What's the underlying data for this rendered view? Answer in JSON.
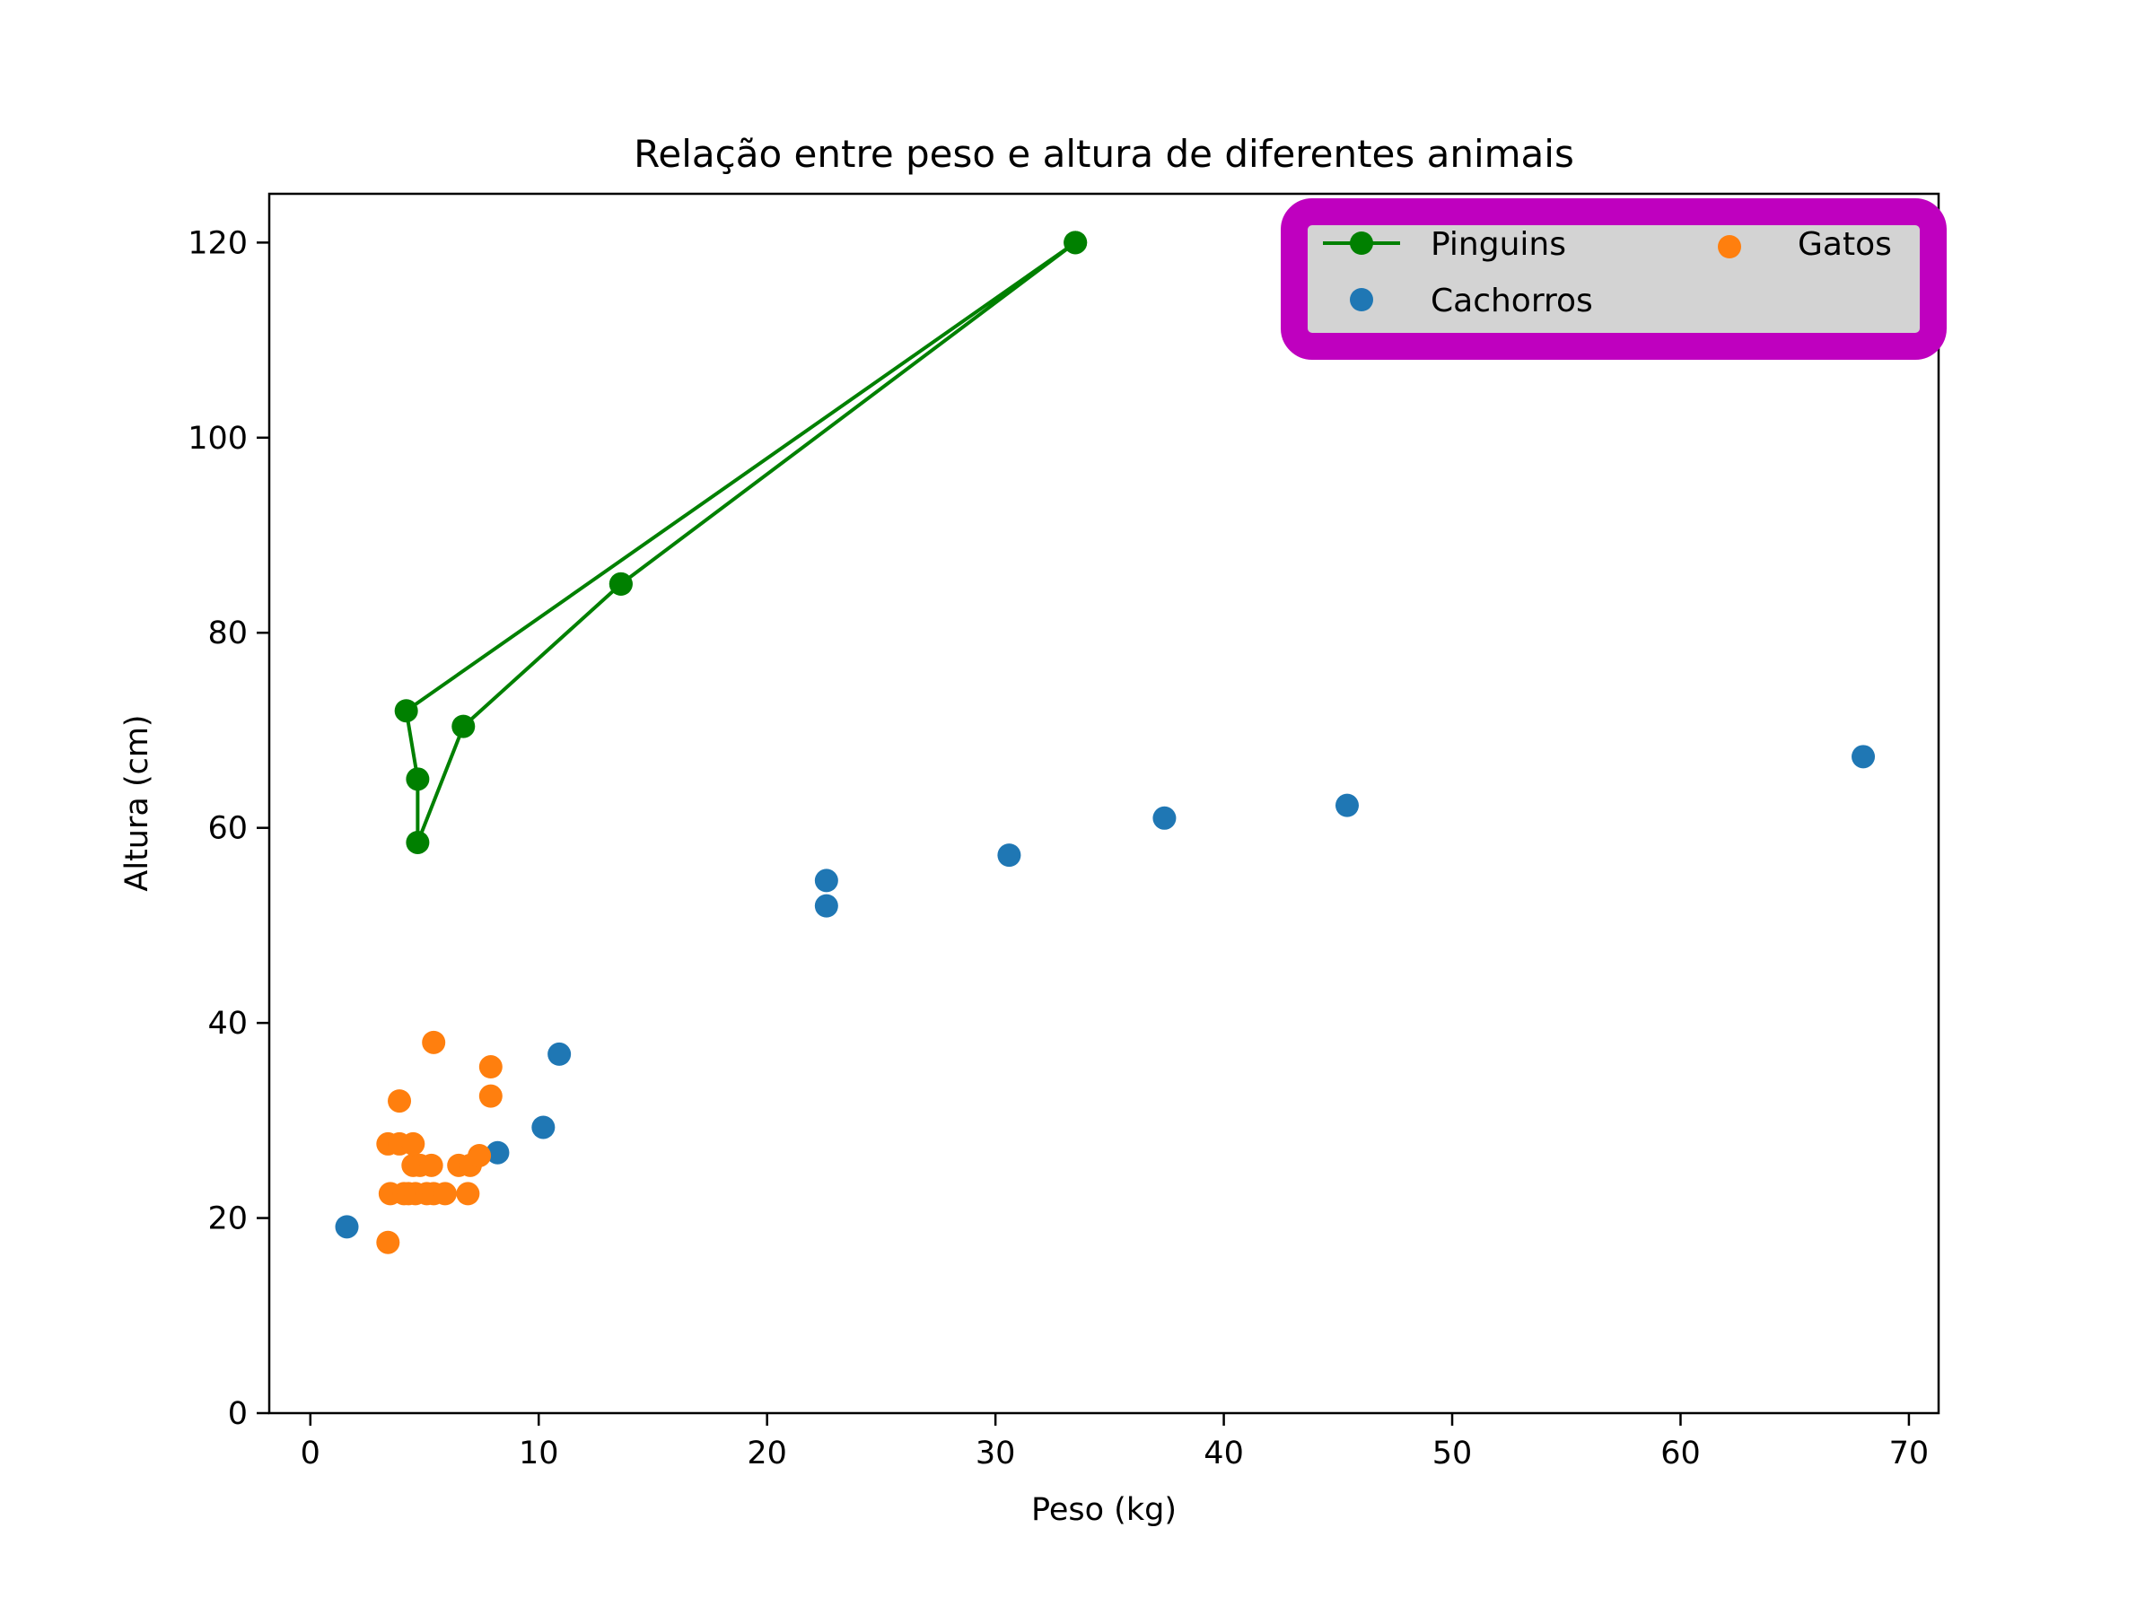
{
  "chart_data": {
    "type": "scatter",
    "title": "Relação entre peso e altura de diferentes animais",
    "xlabel": "Peso (kg)",
    "ylabel": "Altura (cm)",
    "xlim": [
      -1.8,
      71.3
    ],
    "ylim": [
      0,
      125
    ],
    "xticks": [
      0,
      10,
      20,
      30,
      40,
      50,
      60,
      70
    ],
    "yticks": [
      0,
      20,
      40,
      60,
      80,
      100,
      120
    ],
    "xtick_labels": [
      "0",
      "10",
      "20",
      "30",
      "40",
      "50",
      "60",
      "70"
    ],
    "ytick_labels": [
      "0",
      "20",
      "40",
      "60",
      "80",
      "100",
      "120"
    ],
    "grid": false,
    "legend_position": "top-right",
    "legend": {
      "columns": 2,
      "face_color": "#d3d3d3",
      "edge_color": "#bf00bf",
      "shadow": true
    },
    "series": [
      {
        "name": "Pinguins",
        "kind": "line",
        "color": "#008000",
        "marker": "circle",
        "x": [
          33.5,
          4.2,
          4.7,
          4.7,
          6.7,
          13.6,
          33.5,
          13.6
        ],
        "y": [
          120,
          72,
          65,
          58.5,
          70.4,
          85,
          120,
          85
        ]
      },
      {
        "name": "Cachorros",
        "kind": "scatter",
        "color": "#1f77b4",
        "marker": "circle",
        "x": [
          1.6,
          8.2,
          10.2,
          10.9,
          22.6,
          22.6,
          30.6,
          37.4,
          45.4,
          68.0
        ],
        "y": [
          19.1,
          26.7,
          29.3,
          36.8,
          52.0,
          54.6,
          57.2,
          61.0,
          62.3,
          67.3
        ]
      },
      {
        "name": "Gatos",
        "kind": "scatter",
        "color": "#ff7f0e",
        "marker": "circle",
        "x": [
          3.4,
          3.4,
          3.5,
          3.9,
          3.9,
          4.1,
          4.3,
          4.5,
          4.5,
          4.6,
          4.8,
          5.1,
          5.3,
          5.4,
          5.4,
          5.9,
          6.5,
          6.9,
          7.0,
          7.4,
          7.9,
          7.9
        ],
        "y": [
          17.5,
          27.6,
          22.5,
          32.0,
          27.6,
          22.5,
          22.5,
          25.4,
          27.6,
          22.5,
          25.4,
          22.5,
          25.4,
          38.0,
          22.5,
          22.5,
          25.4,
          22.5,
          25.4,
          26.4,
          35.5,
          32.5
        ]
      }
    ]
  }
}
